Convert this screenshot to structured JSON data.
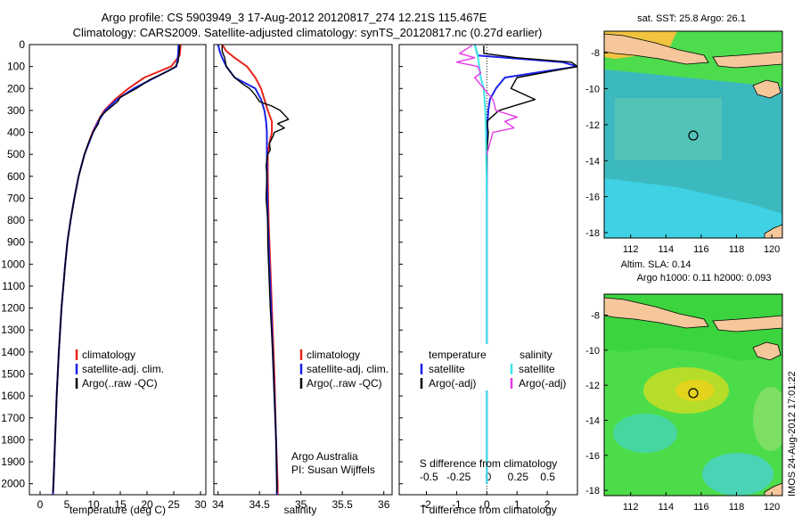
{
  "header": {
    "line1": "Argo profile: CS 5903949_3 17-Aug-2012 20120817_274 12.21S 115.467E",
    "line2": "Climatology: CARS2009. Satellite-adjusted climatology: synTS_20120817.nc (0.27d earlier)"
  },
  "colors": {
    "climatology": "#e8241c",
    "satellite": "#1a22e8",
    "argo": "#000000",
    "satellite_salinity": "#3fe6e6",
    "argo_adj_salinity": "#e639e6"
  },
  "depth_axis": {
    "ticks": [
      "0",
      "100",
      "200",
      "300",
      "400",
      "500",
      "600",
      "700",
      "800",
      "900",
      "1000",
      "1100",
      "1200",
      "1300",
      "1400",
      "1500",
      "1600",
      "1700",
      "1800",
      "1900",
      "2000"
    ]
  },
  "temperature_panel": {
    "xlabel": "temperature (deg C)",
    "xticks": [
      "0",
      "5",
      "10",
      "15",
      "20",
      "25",
      "30"
    ],
    "legend": [
      "climatology",
      "satellite-adj. clim.",
      "Argo(..raw -QC)"
    ]
  },
  "salinity_panel": {
    "xlabel": "salinity",
    "xticks": [
      "34",
      "34.5",
      "35",
      "35.5",
      "36"
    ],
    "legend": [
      "climatology",
      "satellite-adj. clim.",
      "Argo(..raw -QC)"
    ],
    "credit1": "Argo Australia",
    "credit2": "PI: Susan Wijffels"
  },
  "difference_panel": {
    "top_xlabel": "S difference from climatology",
    "top_xticks": [
      "-0.5",
      "-0.25",
      "0",
      "0.25",
      "0.5"
    ],
    "xlabel": "T difference from climatology",
    "xticks": [
      "-2",
      "-1",
      "0",
      "1",
      "2"
    ],
    "legend_temperature_title": "temperature",
    "legend_salinity_title": "salinity",
    "legend_temperature": [
      "satellite",
      "Argo(-adj)"
    ],
    "legend_salinity": [
      "satellite",
      "Argo(-adj)"
    ]
  },
  "sst_map": {
    "title": "sat. SST: 25.8 Argo: 26.1",
    "yticks": [
      "-8",
      "-10",
      "-12",
      "-14",
      "-16",
      "-18"
    ],
    "xticks": [
      "112",
      "114",
      "116",
      "118",
      "120"
    ]
  },
  "sla_map": {
    "title1": "Altim. SLA: 0.14",
    "title2": "Argo h1000: 0.11 h2000: 0.093",
    "yticks": [
      "-8",
      "-10",
      "-12",
      "-14",
      "-16",
      "-18"
    ],
    "xticks": [
      "112",
      "114",
      "116",
      "118",
      "120"
    ]
  },
  "stamp": "IMOS 24-Aug-2012 17:01:22",
  "chart_data": [
    {
      "type": "line",
      "xlabel": "temperature (deg C)",
      "ylabel": "",
      "xlim": [
        -2,
        31
      ],
      "ylim": [
        2050,
        0
      ],
      "series": [
        {
          "name": "climatology",
          "depth": [
            0,
            50,
            100,
            150,
            200,
            250,
            300,
            350,
            400,
            500,
            600,
            700,
            800,
            900,
            1000,
            1200,
            1400,
            1600,
            1800,
            2000,
            2050
          ],
          "values": [
            26.3,
            26.1,
            24.5,
            19.5,
            16.5,
            14.0,
            12.0,
            10.8,
            9.8,
            8.3,
            7.2,
            6.4,
            5.7,
            5.1,
            4.7,
            4.0,
            3.5,
            3.1,
            2.8,
            2.5,
            2.4
          ]
        },
        {
          "name": "satellite-adj. clim.",
          "depth": [
            0,
            50,
            100,
            150,
            200,
            250,
            300,
            350,
            400,
            500,
            600,
            700,
            800,
            900,
            1000,
            1200,
            1400,
            1600,
            1800,
            2000,
            2050
          ],
          "values": [
            25.9,
            25.8,
            25.5,
            21.5,
            17.5,
            14.4,
            12.2,
            10.9,
            9.9,
            8.3,
            7.2,
            6.4,
            5.7,
            5.1,
            4.7,
            4.0,
            3.5,
            3.1,
            2.8,
            2.5,
            2.4
          ]
        },
        {
          "name": "Argo(..raw -QC)",
          "depth": [
            5,
            40,
            80,
            100,
            120,
            160,
            200,
            240,
            260,
            300,
            330,
            360,
            400,
            450,
            500,
            600,
            700,
            800,
            900,
            1000,
            1200,
            1400,
            1600,
            1800,
            2000,
            2040
          ],
          "values": [
            26.1,
            26.0,
            25.8,
            25.3,
            24.0,
            20.5,
            18.0,
            15.0,
            14.5,
            12.5,
            11.2,
            10.9,
            9.9,
            9.0,
            8.3,
            7.2,
            6.4,
            5.7,
            5.1,
            4.7,
            4.0,
            3.5,
            3.1,
            2.8,
            2.5,
            2.4
          ]
        }
      ]
    },
    {
      "type": "line",
      "xlabel": "salinity",
      "ylabel": "",
      "xlim": [
        33.95,
        36.1
      ],
      "ylim": [
        2050,
        0
      ],
      "series": [
        {
          "name": "climatology",
          "depth": [
            0,
            30,
            60,
            100,
            150,
            200,
            250,
            300,
            350,
            400,
            450,
            500,
            600,
            800,
            1000,
            1200,
            1500,
            1800,
            2000,
            2050
          ],
          "values": [
            34.05,
            34.1,
            34.2,
            34.35,
            34.45,
            34.52,
            34.56,
            34.6,
            34.65,
            34.65,
            34.62,
            34.6,
            34.6,
            34.61,
            34.63,
            34.65,
            34.68,
            34.7,
            34.72,
            34.72
          ]
        },
        {
          "name": "satellite-adj. clim.",
          "depth": [
            0,
            30,
            60,
            100,
            150,
            200,
            250,
            300,
            350,
            400,
            450,
            500,
            600,
            800,
            1000,
            1200,
            1500,
            1800,
            2000,
            2050
          ],
          "values": [
            34.0,
            34.02,
            34.05,
            34.1,
            34.2,
            34.45,
            34.52,
            34.56,
            34.58,
            34.59,
            34.59,
            34.59,
            34.59,
            34.6,
            34.62,
            34.64,
            34.67,
            34.7,
            34.71,
            34.71
          ]
        },
        {
          "name": "Argo(..raw -QC)",
          "depth": [
            5,
            30,
            60,
            100,
            150,
            180,
            200,
            230,
            260,
            280,
            300,
            320,
            340,
            360,
            380,
            400,
            420,
            450,
            480,
            500,
            550,
            600,
            700,
            800,
            900,
            1000,
            1200,
            1400,
            1600,
            1800,
            2000,
            2040
          ],
          "values": [
            34.05,
            34.05,
            34.08,
            34.1,
            34.2,
            34.3,
            34.38,
            34.45,
            34.5,
            34.65,
            34.75,
            34.8,
            34.85,
            34.72,
            34.8,
            34.68,
            34.66,
            34.62,
            34.63,
            34.6,
            34.58,
            34.59,
            34.58,
            34.6,
            34.6,
            34.61,
            34.63,
            34.66,
            34.68,
            34.7,
            34.71,
            34.71
          ]
        }
      ]
    },
    {
      "type": "line",
      "xlabel": "T difference from climatology",
      "ylabel": "",
      "xlim": [
        -2.9,
        3.0
      ],
      "ylim": [
        2050,
        0
      ],
      "series": [
        {
          "name": "temperature satellite",
          "depth": [
            0,
            50,
            80,
            100,
            120,
            150,
            200,
            250,
            300,
            400,
            500,
            700,
            1000,
            1500,
            2000
          ],
          "values": [
            -0.4,
            -0.3,
            2.5,
            3.0,
            2.0,
            0.6,
            0.3,
            0.1,
            0.05,
            0.0,
            0.0,
            0.0,
            0.0,
            0.0,
            0.0
          ]
        },
        {
          "name": "temperature Argo(-adj)",
          "depth": [
            5,
            40,
            60,
            80,
            100,
            120,
            150,
            200,
            250,
            300,
            350,
            400,
            500,
            700,
            1000,
            1400,
            2000
          ],
          "values": [
            -0.1,
            -0.1,
            1.0,
            2.8,
            3.0,
            2.2,
            1.0,
            0.8,
            1.6,
            0.4,
            0.0,
            0.05,
            0.0,
            0.0,
            0.0,
            0.0,
            0.0
          ]
        },
        {
          "name": "salinity satellite",
          "depth": [
            0,
            50,
            100,
            150,
            200,
            300,
            400,
            500,
            700,
            1000,
            1500,
            2000
          ],
          "values": [
            -0.4,
            -0.3,
            -0.25,
            -0.2,
            -0.1,
            -0.05,
            -0.03,
            -0.02,
            0.0,
            0.0,
            0.0,
            0.0
          ]
        },
        {
          "name": "salinity Argo(-adj)",
          "depth": [
            5,
            40,
            60,
            80,
            100,
            130,
            150,
            200,
            250,
            300,
            330,
            350,
            380,
            400,
            450,
            500
          ],
          "values": [
            -0.5,
            -0.9,
            -0.4,
            -1.0,
            -0.3,
            -0.2,
            -0.4,
            -0.1,
            0.2,
            0.3,
            1.0,
            0.6,
            0.9,
            0.2,
            0.1,
            0.0
          ]
        }
      ]
    }
  ]
}
